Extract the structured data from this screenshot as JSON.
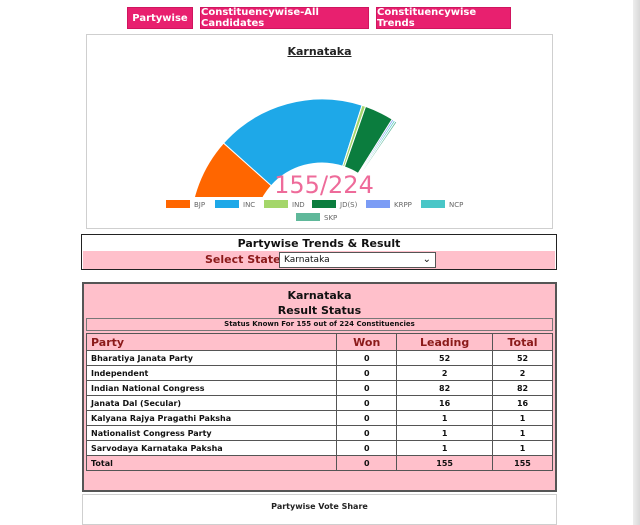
{
  "tabs": [
    {
      "label": "Partywise"
    },
    {
      "label": "Constituencywise-All Candidates"
    },
    {
      "label": "Constituencywise Trends"
    }
  ],
  "colors": {
    "tab_bg": "#e8206f",
    "pink_bg": "#ffc0cb",
    "header_text": "#8b1a1a"
  },
  "chart_data": {
    "type": "pie",
    "variant": "semi-donut",
    "title": "Karnataka",
    "center_label": "155/224",
    "seats_known": 155,
    "seats_total": 224,
    "categories": [
      "BJP",
      "INC",
      "IND",
      "JD(S)",
      "KRPP",
      "NCP",
      "SKP"
    ],
    "values": [
      52,
      82,
      2,
      16,
      1,
      1,
      1
    ],
    "colors": [
      "#ff6600",
      "#1ea8e8",
      "#a4d66a",
      "#0b7d3e",
      "#7b9cf5",
      "#49c6c7",
      "#5fb89a"
    ],
    "legend_position": "bottom"
  },
  "select_section": {
    "title": "Partywise Trends & Result",
    "label": "Select State",
    "selected_state": "Karnataka"
  },
  "result": {
    "state": "Karnataka",
    "subtitle": "Result Status",
    "status_text": "Status Known For 155 out of 224 Constituencies",
    "columns": [
      "Party",
      "Won",
      "Leading",
      "Total"
    ],
    "rows": [
      {
        "party": "Bharatiya Janata Party",
        "won": "0",
        "leading": "52",
        "total": "52"
      },
      {
        "party": "Independent",
        "won": "0",
        "leading": "2",
        "total": "2"
      },
      {
        "party": "Indian National Congress",
        "won": "0",
        "leading": "82",
        "total": "82"
      },
      {
        "party": "Janata Dal (Secular)",
        "won": "0",
        "leading": "16",
        "total": "16"
      },
      {
        "party": "Kalyana Rajya Pragathi Paksha",
        "won": "0",
        "leading": "1",
        "total": "1"
      },
      {
        "party": "Nationalist Congress Party",
        "won": "0",
        "leading": "1",
        "total": "1"
      },
      {
        "party": "Sarvodaya Karnataka Paksha",
        "won": "0",
        "leading": "1",
        "total": "1"
      }
    ],
    "total_row": {
      "party": "Total",
      "won": "0",
      "leading": "155",
      "total": "155"
    }
  },
  "vote_share": {
    "title": "Partywise Vote Share"
  }
}
